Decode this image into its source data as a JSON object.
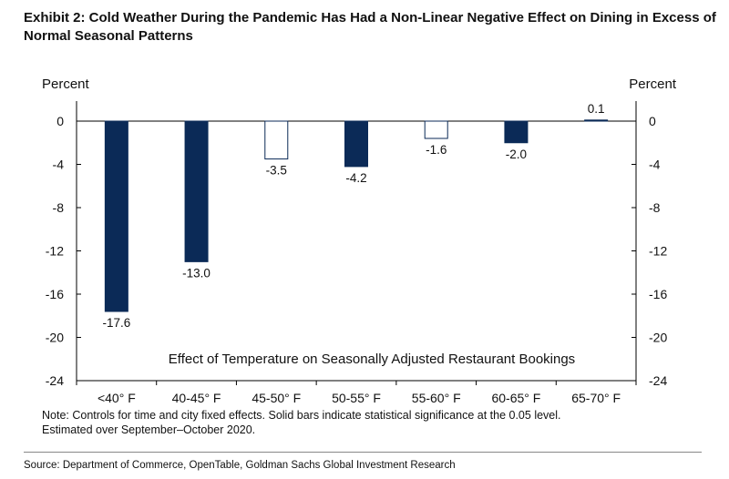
{
  "title": "Exhibit 2: Cold Weather During the Pandemic Has Had a Non-Linear Negative Effect on Dining in Excess of Normal Seasonal Patterns",
  "note": "Note: Controls  for time and city fixed effects. Solid bars indicate statistical significance at the 0.05 level.\nEstimated  over September–October  2020.",
  "source": "Source: Department of Commerce, OpenTable, Goldman Sachs Global Investment Research",
  "colors": {
    "solid_bar": "#0b2a57",
    "hollow_bar_fill": "#ffffff",
    "hollow_bar_stroke": "#0b2a57",
    "axis": "#000000"
  },
  "chart_data": {
    "type": "bar",
    "title": "",
    "annotation": "Effect of Temperature  on Seasonally Adjusted Restaurant Bookings",
    "ylabel_left": "Percent",
    "ylabel_right": "Percent",
    "xlabel": "",
    "ylim": [
      -24,
      0.8
    ],
    "yticks": [
      0,
      -4,
      -8,
      -12,
      -16,
      -20,
      -24
    ],
    "categories": [
      "<40° F",
      "40-45° F",
      "45-50° F",
      "50-55° F",
      "55-60° F",
      "60-65° F",
      "65-70° F"
    ],
    "values": [
      -17.6,
      -13.0,
      -3.5,
      -4.2,
      -1.6,
      -2.0,
      0.1
    ],
    "value_labels": [
      "-17.6",
      "-13.0",
      "-3.5",
      "-4.2",
      "-1.6",
      "-2.0",
      "0.1"
    ],
    "significant": [
      true,
      true,
      false,
      true,
      false,
      true,
      true
    ],
    "grid": false,
    "legend": "none"
  }
}
